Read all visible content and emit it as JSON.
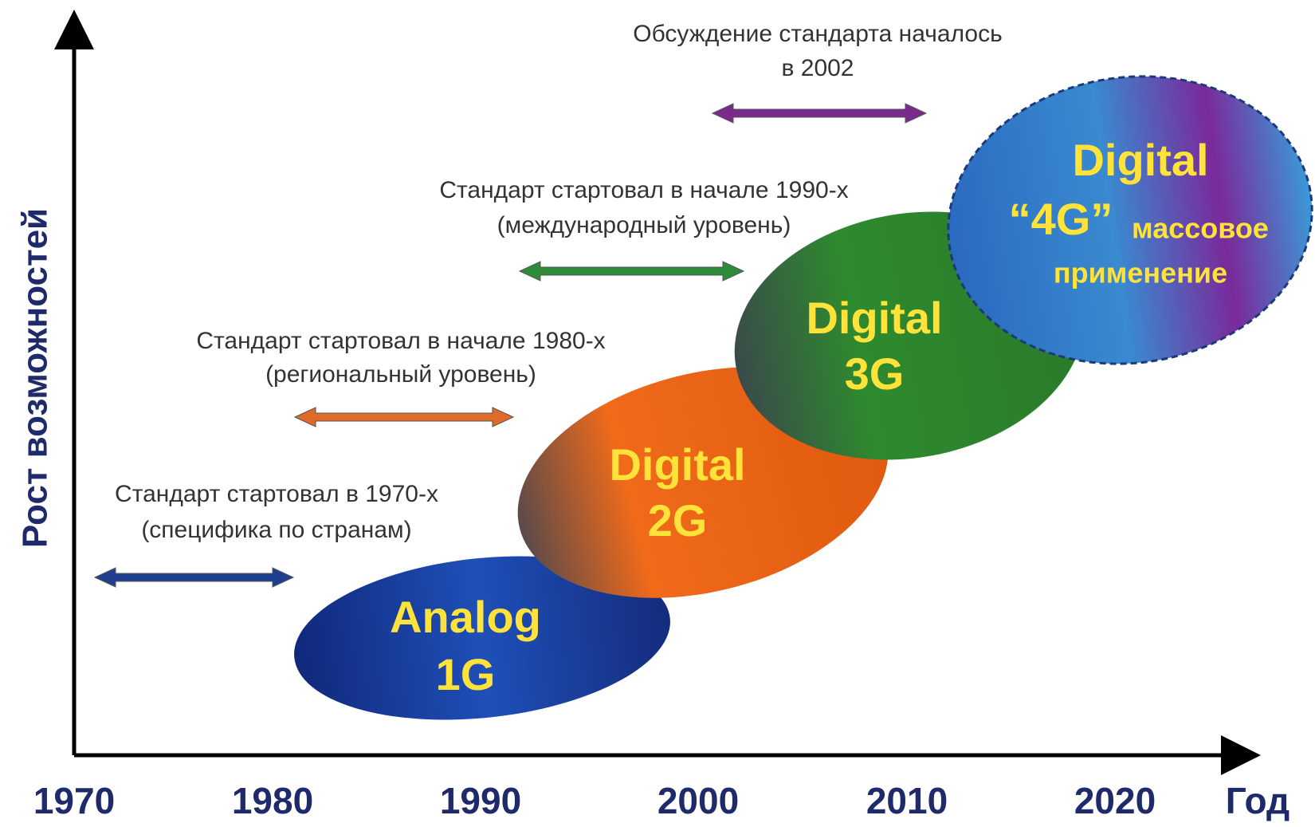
{
  "y_axis": {
    "label": "Рост возможностей"
  },
  "x_axis": {
    "label": "Год",
    "ticks": [
      "1970",
      "1980",
      "1990",
      "2000",
      "2010",
      "2020"
    ]
  },
  "generations": [
    {
      "lines": [
        "Analog",
        "1G"
      ]
    },
    {
      "lines": [
        "Digital",
        "2G"
      ]
    },
    {
      "lines": [
        "Digital",
        "3G"
      ]
    },
    {
      "lines": [
        "Digital",
        "“4G”",
        "массовое",
        "применение"
      ]
    }
  ],
  "annotations": [
    {
      "lines": [
        "Стандарт стартовал в 1970-х",
        "(специфика по странам)"
      ]
    },
    {
      "lines": [
        "Стандарт стартовал в начале 1980-х",
        "(региональный уровень)"
      ]
    },
    {
      "lines": [
        "Стандарт стартовал в начале 1990-х",
        "(международный уровень)"
      ]
    },
    {
      "lines": [
        "Обсуждение стандарта началось",
        "в 2002"
      ]
    }
  ]
}
